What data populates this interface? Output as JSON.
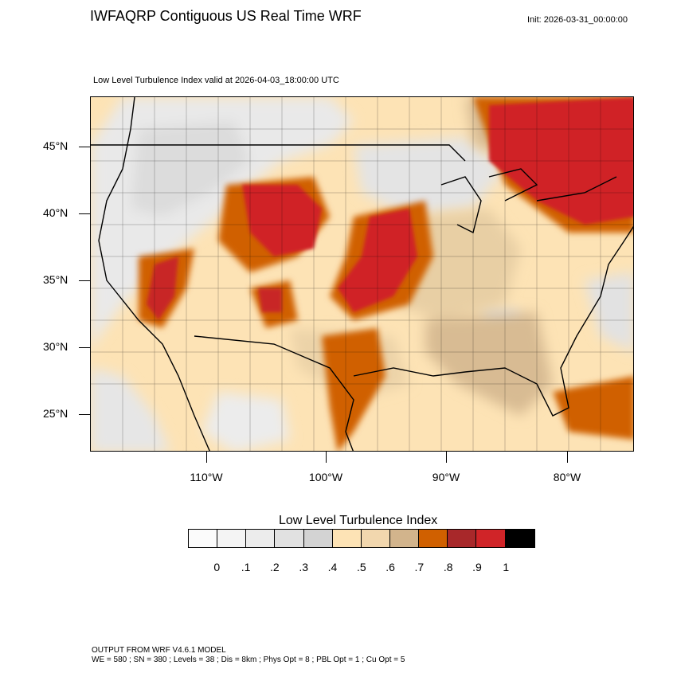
{
  "header": {
    "title": "IWFAQRP Contiguous US Real Time WRF",
    "init": "Init: 2026-03-31_00:00:00",
    "subtitle": "Low Level Turbulence Index valid at 2026-04-03_18:00:00 UTC"
  },
  "axes": {
    "lat_labels": [
      "45°N",
      "40°N",
      "35°N",
      "30°N",
      "25°N"
    ],
    "lon_labels": [
      "110°W",
      "100°W",
      "90°W",
      "80°W"
    ]
  },
  "colorbar": {
    "title": "Low Level Turbulence Index",
    "colors": [
      "#fbfbfb",
      "#f4f4f4",
      "#ececec",
      "#e1e1e1",
      "#d3d3d3",
      "#fde3b5",
      "#f2d7ae",
      "#d2b48c",
      "#d06000",
      "#a8282a",
      "#d02428",
      "#000000"
    ],
    "labels": [
      "0",
      ".1",
      ".2",
      ".3",
      ".4",
      ".5",
      ".6",
      ".7",
      ".8",
      ".9",
      "1"
    ]
  },
  "footer": {
    "line1": "OUTPUT FROM WRF V4.6.1 MODEL",
    "line2": "WE = 580 ; SN = 380 ; Levels = 38 ; Dis = 8km ; Phys Opt = 8 ; PBL Opt = 1 ; Cu Opt = 5"
  }
}
